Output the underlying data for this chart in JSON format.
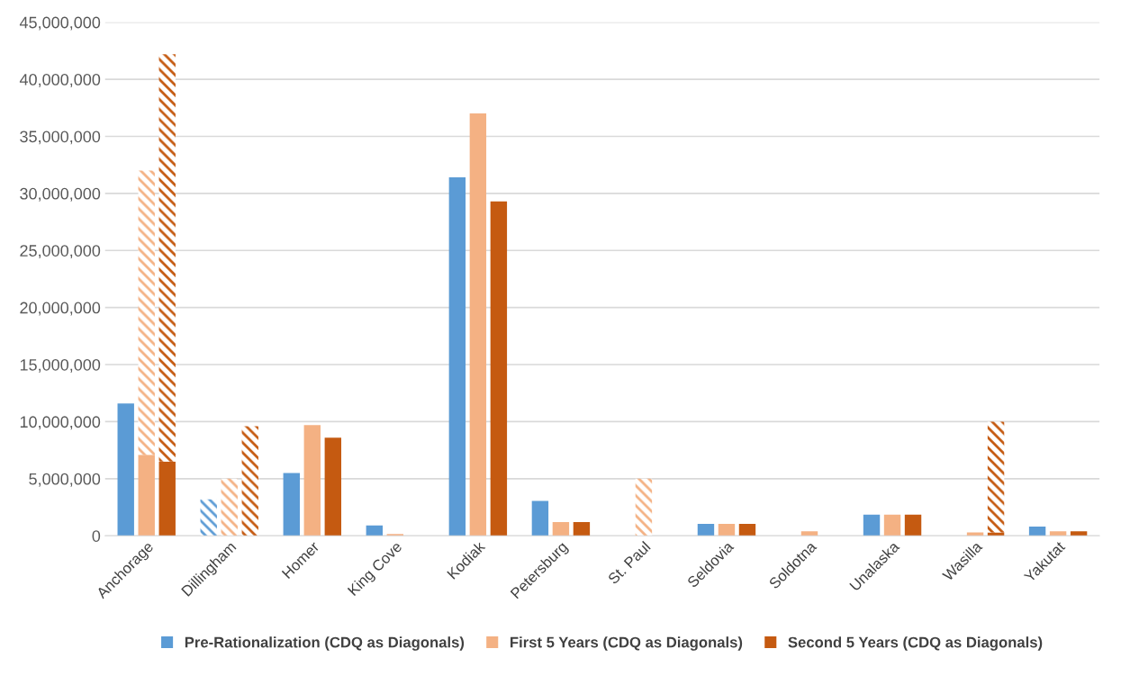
{
  "chart_data": {
    "type": "bar",
    "categories": [
      "Anchorage",
      "Dillingham",
      "Homer",
      "King Cove",
      "Kodiak",
      "Petersburg",
      "St. Paul",
      "Seldovia",
      "Soldotna",
      "Unalaska",
      "Wasilla",
      "Yakutat"
    ],
    "series": [
      {
        "name": "Pre-Rationalization (CDQ as Diagonals)",
        "color": "#5b9bd5",
        "values": [
          11600000,
          null,
          5500000,
          900000,
          31400000,
          3050000,
          null,
          1050000,
          null,
          1850000,
          null,
          800000
        ]
      },
      {
        "color": "#5b9bd5",
        "base": [
          null,
          0,
          null,
          null,
          null,
          null,
          null,
          null,
          null,
          null,
          null,
          null
        ],
        "values": [
          null,
          3200000,
          null,
          null,
          null,
          null,
          null,
          null,
          null,
          null,
          null,
          null
        ]
      },
      {
        "name": "First 5 Years (CDQ as Diagonals)",
        "color": "#f4b183",
        "values": [
          7100000,
          null,
          9700000,
          150000,
          37000000,
          1200000,
          null,
          1050000,
          400000,
          1850000,
          300000,
          400000
        ]
      },
      {
        "color": "#f4b183",
        "base": [
          7100000,
          0,
          null,
          null,
          null,
          null,
          0,
          null,
          null,
          null,
          null,
          null
        ],
        "values": [
          24900000,
          5000000,
          null,
          null,
          null,
          null,
          5000000,
          null,
          null,
          null,
          null,
          null
        ]
      },
      {
        "name": "Second 5 Years (CDQ as Diagonals)",
        "color": "#c55a11",
        "values": [
          6500000,
          null,
          8600000,
          null,
          29300000,
          1200000,
          null,
          1050000,
          null,
          1850000,
          300000,
          400000
        ]
      },
      {
        "color": "#c55a11",
        "base": [
          6500000,
          0,
          null,
          null,
          null,
          null,
          null,
          null,
          null,
          null,
          300000,
          null
        ],
        "values": [
          35700000,
          9600000,
          null,
          null,
          null,
          null,
          null,
          null,
          null,
          null,
          9700000,
          null
        ]
      }
    ],
    "ylim": [
      0,
      45000000
    ],
    "yticks": [
      0,
      {
        "value": 5000000,
        "label": "5,000,000"
      },
      {
        "value": 10000000,
        "label": "10,000,000"
      },
      {
        "value": 15000000,
        "label": "15,000,000"
      },
      {
        "value": 20000000,
        "label": "20,000,000"
      },
      {
        "value": 25000000,
        "label": "25,000,000"
      },
      {
        "value": 30000000,
        "label": "30,000,000"
      },
      {
        "value": 35000000,
        "label": "35,000,000"
      },
      {
        "value": 40000000,
        "label": "40,000,000"
      },
      {
        "value": 45000000,
        "label": "45,000,000"
      }
    ],
    "grid": "y",
    "legend": "bottom"
  }
}
